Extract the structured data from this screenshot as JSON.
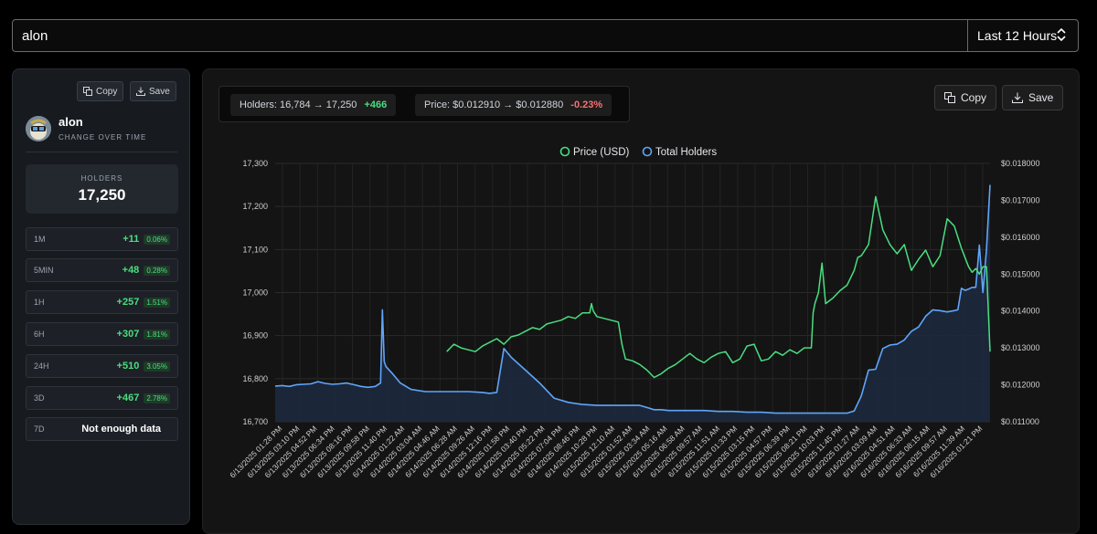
{
  "search": {
    "value": "alon"
  },
  "range": {
    "selected": "Last 12 Hours"
  },
  "left": {
    "copy_label": "Copy",
    "save_label": "Save",
    "token_name": "alon",
    "subtitle": "CHANGE OVER TIME",
    "holders_label": "HOLDERS",
    "holders_value": "17,250",
    "stats": [
      {
        "label": "1M",
        "value": "+11",
        "pct": "0.06%"
      },
      {
        "label": "5MIN",
        "value": "+48",
        "pct": "0.28%"
      },
      {
        "label": "1H",
        "value": "+257",
        "pct": "1.51%"
      },
      {
        "label": "6H",
        "value": "+307",
        "pct": "1.81%"
      },
      {
        "label": "24H",
        "value": "+510",
        "pct": "3.05%"
      },
      {
        "label": "3D",
        "value": "+467",
        "pct": "2.78%"
      },
      {
        "label": "7D",
        "value": "Not enough data",
        "pct": ""
      }
    ]
  },
  "main": {
    "holders_summary": "Holders: 16,784 → 17,250",
    "holders_change": "+466",
    "price_summary": "Price: $0.012910 → $0.012880",
    "price_change": "-0.23%",
    "copy_label": "Copy",
    "save_label": "Save"
  },
  "chart_data": {
    "type": "line",
    "legend": [
      "Price (USD)",
      "Total Holders"
    ],
    "legend_position": "top-center",
    "grid": true,
    "colors": {
      "price": "#4ade80",
      "holders": "#60a5fa"
    },
    "y_left": {
      "min": 16700,
      "max": 17300,
      "ticks": [
        "16,700",
        "16,800",
        "16,900",
        "17,000",
        "17,100",
        "17,200",
        "17,300"
      ]
    },
    "y_right": {
      "min": 0.011,
      "max": 0.018,
      "ticks": [
        "$0.011000",
        "$0.012000",
        "$0.013000",
        "$0.014000",
        "$0.015000",
        "$0.016000",
        "$0.017000",
        "$0.018000"
      ]
    },
    "x_labels": [
      "6/13/2025 01:28 PM",
      "6/13/2025 03:10 PM",
      "6/13/2025 04:52 PM",
      "6/13/2025 06:34 PM",
      "6/13/2025 08:16 PM",
      "6/13/2025 09:58 PM",
      "6/13/2025 11:40 PM",
      "6/14/2025 01:22 AM",
      "6/14/2025 03:04 AM",
      "6/14/2025 04:46 AM",
      "6/14/2025 06:28 AM",
      "6/14/2025 09:26 AM",
      "6/14/2025 12:16 PM",
      "6/14/2025 01:58 PM",
      "6/14/2025 03:40 PM",
      "6/14/2025 05:22 PM",
      "6/14/2025 07:04 PM",
      "6/14/2025 08:46 PM",
      "6/14/2025 10:28 PM",
      "6/15/2025 12:10 AM",
      "6/15/2025 01:52 AM",
      "6/15/2025 03:34 AM",
      "6/15/2025 05:16 AM",
      "6/15/2025 06:58 AM",
      "6/15/2025 09:57 AM",
      "6/15/2025 11:51 AM",
      "6/15/2025 01:33 PM",
      "6/15/2025 03:15 PM",
      "6/15/2025 04:57 PM",
      "6/15/2025 06:39 PM",
      "6/15/2025 08:21 PM",
      "6/15/2025 10:03 PM",
      "6/15/2025 11:45 PM",
      "6/16/2025 01:27 AM",
      "6/16/2025 03:09 AM",
      "6/16/2025 04:51 AM",
      "6/16/2025 06:33 AM",
      "6/16/2025 08:15 AM",
      "6/16/2025 09:57 AM",
      "6/16/2025 11:39 AM",
      "6/16/2025 01:21 PM"
    ],
    "series": [
      {
        "name": "Total Holders",
        "axis": "left",
        "x": [
          0,
          2,
          4,
          6,
          8,
          10,
          12,
          14,
          16,
          18,
          20,
          22,
          24,
          26,
          28,
          29.5,
          30,
          30.5,
          31,
          33,
          35,
          38,
          42,
          46,
          50,
          54,
          58,
          60,
          62,
          64,
          66,
          70,
          74,
          78,
          82,
          86,
          90,
          94,
          98,
          102,
          104,
          106,
          108,
          110,
          112,
          114,
          116,
          118,
          120,
          124,
          128,
          132,
          136,
          140,
          144,
          148,
          152,
          156,
          160,
          162,
          164,
          166,
          168,
          170,
          172,
          174,
          176,
          178,
          180,
          182,
          184,
          186,
          188,
          190,
          191,
          192,
          193,
          194,
          195,
          196,
          197,
          198,
          199,
          200
        ],
        "y": [
          16783,
          16784,
          16782,
          16786,
          16787,
          16788,
          16793,
          16789,
          16787,
          16788,
          16790,
          16786,
          16782,
          16780,
          16782,
          16790,
          16960,
          16840,
          16828,
          16810,
          16790,
          16775,
          16770,
          16770,
          16770,
          16770,
          16768,
          16766,
          16768,
          16870,
          16850,
          16820,
          16790,
          16755,
          16745,
          16740,
          16738,
          16738,
          16738,
          16738,
          16733,
          16728,
          16728,
          16726,
          16726,
          16726,
          16726,
          16726,
          16726,
          16724,
          16724,
          16722,
          16722,
          16720,
          16720,
          16720,
          16720,
          16720,
          16720,
          16725,
          16760,
          16820,
          16822,
          16870,
          16878,
          16880,
          16890,
          16910,
          16920,
          16945,
          16960,
          16958,
          16955,
          16958,
          16960,
          17010,
          17005,
          17008,
          17012,
          17012,
          17110,
          17000,
          17100,
          17250
        ]
      },
      {
        "name": "Price (USD)",
        "axis": "right",
        "x": [
          48,
          50,
          52,
          54,
          56,
          58,
          60,
          62,
          64,
          66,
          68,
          70,
          72,
          74,
          76,
          78,
          80,
          82,
          84,
          86,
          88,
          88.5,
          89,
          90,
          92,
          94,
          96,
          97,
          98,
          100,
          102,
          104,
          106,
          108,
          110,
          112,
          114,
          116,
          118,
          120,
          122,
          124,
          126,
          128,
          130,
          132,
          134,
          136,
          138,
          140,
          142,
          144,
          146,
          148,
          150,
          150.5,
          151,
          152,
          153,
          154,
          156,
          158,
          160,
          162,
          163,
          164,
          166,
          168,
          170,
          172,
          174,
          176,
          178,
          180,
          182,
          184,
          186,
          188,
          190,
          192,
          194,
          195,
          196,
          197,
          198,
          199,
          200
        ],
        "y": [
          0.0129,
          0.0131,
          0.013,
          0.01295,
          0.0129,
          0.01305,
          0.01315,
          0.01325,
          0.0131,
          0.0133,
          0.01335,
          0.01345,
          0.01355,
          0.0135,
          0.01365,
          0.0137,
          0.01375,
          0.01385,
          0.0138,
          0.01395,
          0.01395,
          0.0142,
          0.014,
          0.01385,
          0.0138,
          0.01375,
          0.0137,
          0.0131,
          0.0127,
          0.01265,
          0.01255,
          0.0124,
          0.0122,
          0.0123,
          0.01245,
          0.01255,
          0.0127,
          0.01285,
          0.0127,
          0.0126,
          0.01275,
          0.01285,
          0.0129,
          0.0126,
          0.0127,
          0.01305,
          0.0131,
          0.01265,
          0.0127,
          0.0129,
          0.0128,
          0.01295,
          0.01285,
          0.013,
          0.013,
          0.01395,
          0.0142,
          0.0145,
          0.0153,
          0.0142,
          0.01435,
          0.01455,
          0.0147,
          0.0151,
          0.01545,
          0.0155,
          0.0158,
          0.0171,
          0.0162,
          0.0158,
          0.01555,
          0.0158,
          0.0151,
          0.0154,
          0.01565,
          0.0152,
          0.0155,
          0.0165,
          0.0163,
          0.0157,
          0.0152,
          0.01505,
          0.01515,
          0.015,
          0.0152,
          0.0152,
          0.0129
        ]
      }
    ]
  }
}
